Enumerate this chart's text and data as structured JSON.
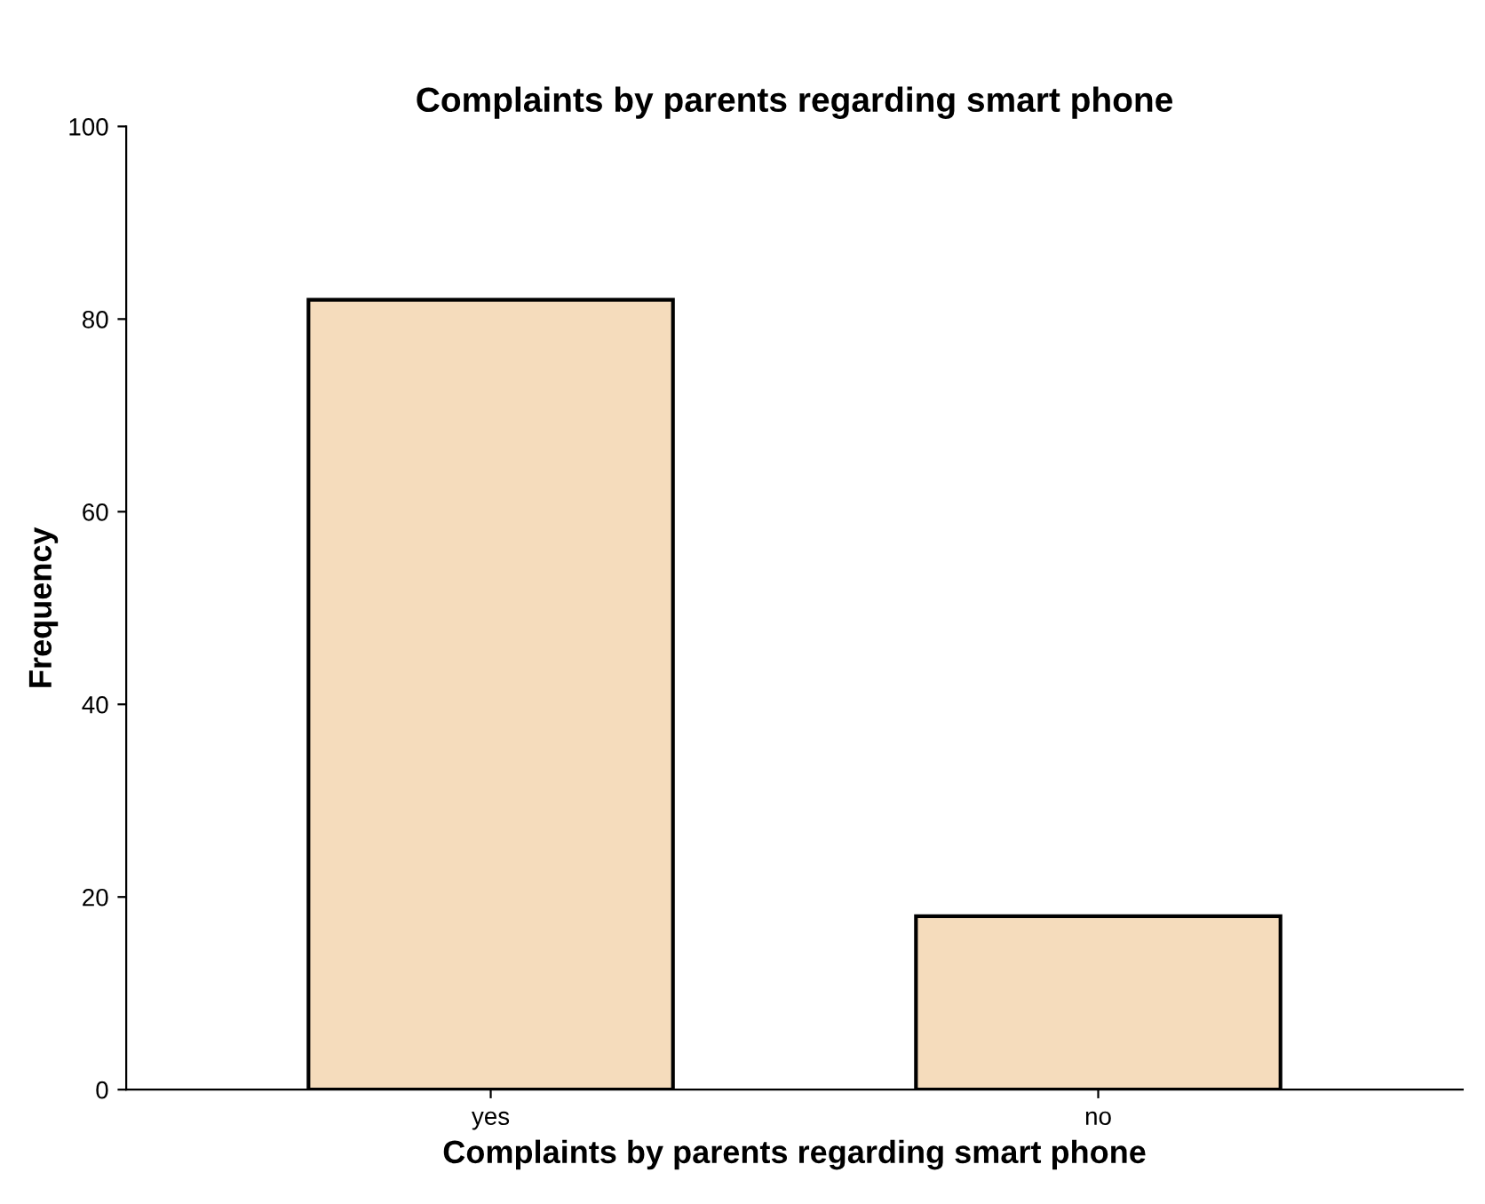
{
  "chart_data": {
    "type": "bar",
    "title": "Complaints by parents regarding smart phone",
    "xlabel": "Complaints by parents regarding smart phone",
    "ylabel": "Frequency",
    "categories": [
      "yes",
      "no"
    ],
    "values": [
      82,
      18
    ],
    "color": "#f5dcbc",
    "ylim": [
      0,
      100
    ],
    "yticks": [
      0,
      20,
      40,
      60,
      80,
      100
    ],
    "grid": false
  }
}
